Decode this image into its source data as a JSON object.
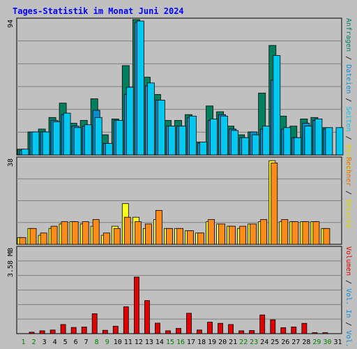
{
  "chart_data": [
    {
      "type": "bar",
      "title": "Tages-Statistik im Monat Juni 2024",
      "ymax_label": "94",
      "ylim": [
        0,
        94
      ],
      "right_label_parts": [
        {
          "text": "Anfragen",
          "color": "#007f5f"
        },
        {
          "text": " / ",
          "color": "#000000"
        },
        {
          "text": "Dateien",
          "color": "#0b8fd3"
        },
        {
          "text": " / ",
          "color": "#000000"
        },
        {
          "text": "Seiten",
          "color": "#00c8f0"
        },
        {
          "text": " / ",
          "color": "#000000"
        },
        {
          "text": "Besuche",
          "color": "#d8d800"
        }
      ],
      "categories": [
        "1",
        "2",
        "3",
        "4",
        "5",
        "6",
        "7",
        "8",
        "9",
        "10",
        "11",
        "12",
        "13",
        "14",
        "15",
        "16",
        "17",
        "18",
        "19",
        "20",
        "21",
        "22",
        "23",
        "24",
        "25",
        "26",
        "27",
        "28",
        "29",
        "30",
        "31"
      ],
      "series": [
        {
          "name": "Anfragen",
          "color": "#007f5f",
          "values": [
            4,
            16,
            18,
            26,
            36,
            22,
            24,
            39,
            14,
            25,
            62,
            94,
            54,
            42,
            24,
            24,
            28,
            9,
            34,
            30,
            20,
            14,
            16,
            43,
            76,
            27,
            20,
            25,
            26,
            19,
            0
          ]
        },
        {
          "name": "Dateien",
          "color": "#0b8fd3",
          "values": [
            3,
            16,
            16,
            24,
            28,
            20,
            20,
            31,
            8,
            24,
            42,
            92,
            48,
            38,
            20,
            20,
            26,
            8,
            24,
            28,
            18,
            12,
            16,
            18,
            52,
            18,
            12,
            22,
            24,
            18,
            0
          ]
        },
        {
          "name": "Seiten",
          "color": "#00c8f0",
          "values": [
            4,
            16,
            16,
            23,
            29,
            19,
            21,
            26,
            8,
            24,
            47,
            93,
            50,
            38,
            20,
            20,
            27,
            9,
            25,
            27,
            17,
            12,
            14,
            20,
            69,
            19,
            12,
            20,
            25,
            19,
            19
          ]
        }
      ]
    },
    {
      "type": "bar",
      "ymax_label": "38",
      "ylim": [
        0,
        38
      ],
      "right_label_parts": [
        {
          "text": "Rechner",
          "color": "#e07000"
        },
        {
          "text": " / ",
          "color": "#000000"
        },
        {
          "text": "Besuche",
          "color": "#d8d800"
        }
      ],
      "categories": [
        "1",
        "2",
        "3",
        "4",
        "5",
        "6",
        "7",
        "8",
        "9",
        "10",
        "11",
        "12",
        "13",
        "14",
        "15",
        "16",
        "17",
        "18",
        "19",
        "20",
        "21",
        "22",
        "23",
        "24",
        "25",
        "26",
        "27",
        "28",
        "29",
        "30",
        "31"
      ],
      "series": [
        {
          "name": "Besuche",
          "color": "#ffff20",
          "values": [
            3,
            7,
            4,
            7,
            9,
            10,
            9,
            8,
            4,
            8,
            18,
            12,
            7,
            11,
            7,
            7,
            6,
            5,
            10,
            9,
            8,
            7,
            9,
            10,
            37,
            10,
            10,
            10,
            10,
            7,
            0
          ]
        },
        {
          "name": "Rechner",
          "color": "#ff8c1a",
          "values": [
            3,
            7,
            5,
            8,
            10,
            10,
            10,
            11,
            5,
            7,
            12,
            10,
            9,
            15,
            7,
            7,
            6,
            5,
            11,
            9,
            8,
            8,
            9,
            11,
            36,
            11,
            10,
            10,
            10,
            7,
            0
          ]
        }
      ]
    },
    {
      "type": "bar",
      "ymax_label": "3.58 MB",
      "ylim": [
        0,
        3.58
      ],
      "right_label_parts": [
        {
          "text": "Volumen",
          "color": "#e00000"
        },
        {
          "text": " / ",
          "color": "#000000"
        },
        {
          "text": "Vol. In",
          "color": "#0b8fd3"
        },
        {
          "text": " / ",
          "color": "#000000"
        },
        {
          "text": "Vol. Out",
          "color": "#0b8fd3"
        }
      ],
      "categories": [
        "1",
        "2",
        "3",
        "4",
        "5",
        "6",
        "7",
        "8",
        "9",
        "10",
        "11",
        "12",
        "13",
        "14",
        "15",
        "16",
        "17",
        "18",
        "19",
        "20",
        "21",
        "22",
        "23",
        "24",
        "25",
        "26",
        "27",
        "28",
        "29",
        "30",
        "31"
      ],
      "series": [
        {
          "name": "Volumen",
          "color": "#e00000",
          "values": [
            0,
            0.06,
            0.12,
            0.15,
            0.38,
            0.26,
            0.28,
            0.83,
            0.14,
            0.31,
            1.12,
            2.36,
            1.38,
            0.44,
            0.12,
            0.22,
            0.85,
            0.15,
            0.48,
            0.43,
            0.38,
            0.12,
            0.13,
            0.78,
            0.58,
            0.25,
            0.28,
            0.43,
            0.04,
            0.04,
            0
          ]
        }
      ]
    }
  ],
  "x_axis": {
    "labels": [
      "1",
      "2",
      "3",
      "4",
      "5",
      "6",
      "7",
      "8",
      "9",
      "10",
      "11",
      "12",
      "13",
      "14",
      "15",
      "16",
      "17",
      "18",
      "19",
      "20",
      "21",
      "22",
      "23",
      "24",
      "25",
      "26",
      "27",
      "28",
      "29",
      "30",
      "31"
    ],
    "weekend_days": [
      1,
      2,
      8,
      9,
      15,
      16,
      22,
      23,
      29,
      30
    ],
    "weekend_color": "#008000",
    "weekday_color": "#000000"
  },
  "colors": {
    "background": "#c0c0c0",
    "plot_bg": "#c0c0c0",
    "title": "#0000ff"
  }
}
